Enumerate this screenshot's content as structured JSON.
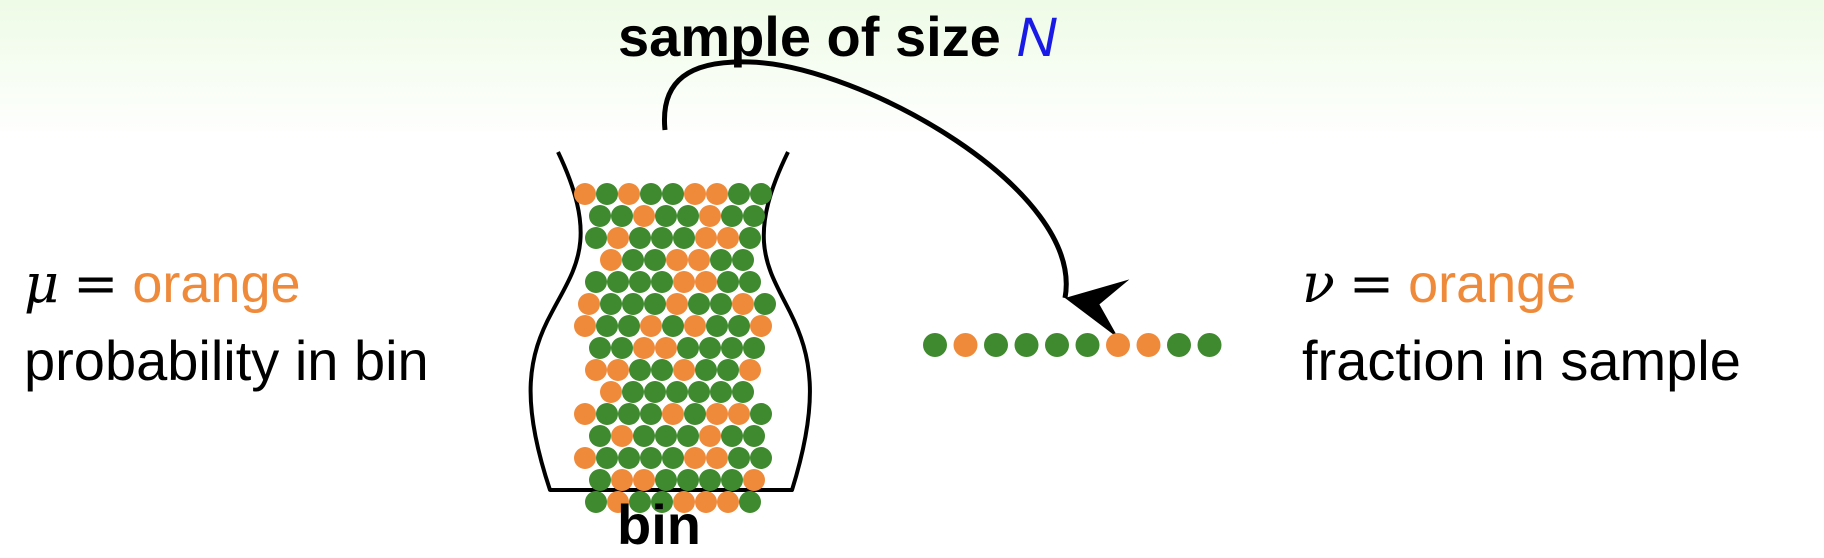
{
  "title": {
    "text": "sample of size ",
    "variable": "N"
  },
  "left_panel": {
    "symbol": "μ",
    "operator": "=",
    "word": "orange",
    "description": "probability in bin"
  },
  "right_panel": {
    "symbol": "ν",
    "operator": "=",
    "word": "orange",
    "description": "fraction in sample"
  },
  "bin": {
    "label": "bin",
    "rows": [
      "ogoggoogg",
      "ggoggogg",
      "gogggoog",
      "oggoogg",
      "ggggoogg",
      "ogggoggog",
      "oggogoggo",
      "ggoogggg",
      "ooggoggo",
      "ogggggg",
      "ogggogoog",
      "gogggogg",
      "oggggoogg",
      "googgggo",
      "goggooog"
    ]
  },
  "sample": {
    "balls": [
      "g",
      "o",
      "g",
      "g",
      "g",
      "g",
      "o",
      "o",
      "g",
      "g"
    ]
  },
  "colors": {
    "orange": "#ef8a3a",
    "green": "#3f8a2e",
    "variable_blue": "#1a1ae6",
    "background_top": "#eefbe6"
  }
}
